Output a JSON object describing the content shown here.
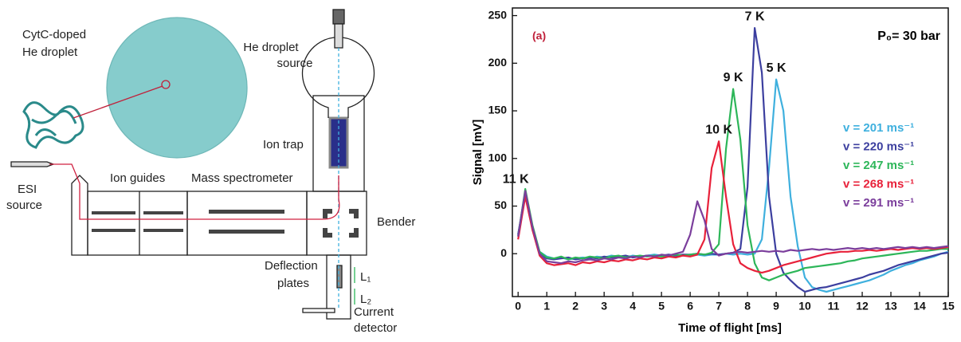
{
  "diagram": {
    "droplet_label": [
      "CytC-doped",
      "He droplet"
    ],
    "source_label": [
      "He droplet",
      "source"
    ],
    "ion_trap": "Ion trap",
    "esi_label": [
      "ESI",
      "source"
    ],
    "ion_guides": "Ion guides",
    "mass_spectrometer": "Mass spectrometer",
    "bender": "Bender",
    "deflection_label": [
      "Deflection",
      "plates"
    ],
    "detector_label": [
      "Current",
      "detector"
    ],
    "l1": "L₁",
    "l2": "L₂"
  },
  "chart_data": {
    "type": "line",
    "panel_label": "(a)",
    "condition": "P₀= 30 bar",
    "x_label": "Time of flight [ms]",
    "y_label": "Signal [mV]",
    "xlim": [
      -0.2,
      15
    ],
    "ylim": [
      -45,
      258
    ],
    "xticks": [
      0,
      1,
      2,
      3,
      4,
      5,
      6,
      7,
      8,
      9,
      10,
      11,
      12,
      13,
      14,
      15
    ],
    "yticks": [
      0,
      50,
      100,
      150,
      200,
      250
    ],
    "x": [
      0,
      0.25,
      0.5,
      0.75,
      1,
      1.25,
      1.5,
      1.75,
      2,
      2.25,
      2.5,
      2.75,
      3,
      3.25,
      3.5,
      3.75,
      4,
      4.25,
      4.5,
      4.75,
      5,
      5.25,
      5.5,
      5.75,
      6,
      6.25,
      6.5,
      6.75,
      7,
      7.25,
      7.5,
      7.75,
      8,
      8.25,
      8.5,
      8.75,
      9,
      9.25,
      9.5,
      9.75,
      10,
      10.25,
      10.5,
      10.75,
      11,
      11.25,
      11.5,
      11.75,
      12,
      12.25,
      12.5,
      12.75,
      13,
      13.25,
      13.5,
      13.75,
      14,
      14.25,
      14.5,
      14.75,
      15
    ],
    "series": [
      {
        "name": "v = 201 ms⁻¹",
        "annotation": "5 K",
        "color": "#3fb0de",
        "values": [
          20,
          62,
          25,
          2,
          -3,
          -5,
          -4,
          -6,
          -5,
          -4,
          -5,
          -3,
          -4,
          -2,
          -3,
          -4,
          -2,
          -3,
          -2,
          -1,
          -2,
          -3,
          -2,
          -1,
          -2,
          -1,
          -2,
          -1,
          -1,
          0,
          -1,
          0,
          -1,
          0,
          15,
          90,
          183,
          150,
          60,
          8,
          -25,
          -35,
          -38,
          -40,
          -38,
          -36,
          -34,
          -32,
          -30,
          -28,
          -25,
          -22,
          -18,
          -15,
          -12,
          -10,
          -7,
          -5,
          -3,
          0,
          2
        ]
      },
      {
        "name": "v = 220 ms⁻¹",
        "annotation": "7 K",
        "color": "#3c3f9f",
        "values": [
          20,
          65,
          28,
          0,
          -5,
          -6,
          -5,
          -4,
          -6,
          -5,
          -4,
          -5,
          -3,
          -4,
          -3,
          -2,
          -4,
          -3,
          -2,
          -3,
          -2,
          -1,
          -2,
          -1,
          -1,
          0,
          -1,
          0,
          -1,
          0,
          1,
          5,
          70,
          237,
          190,
          60,
          0,
          -20,
          -28,
          -35,
          -40,
          -38,
          -36,
          -35,
          -33,
          -31,
          -29,
          -27,
          -25,
          -22,
          -20,
          -18,
          -15,
          -12,
          -10,
          -8,
          -6,
          -4,
          -2,
          0,
          1
        ]
      },
      {
        "name": "v = 247 ms⁻¹",
        "annotation": "9 K",
        "color": "#2db659",
        "values": [
          18,
          68,
          30,
          2,
          -4,
          -5,
          -3,
          -6,
          -4,
          -5,
          -3,
          -4,
          -5,
          -3,
          -2,
          -4,
          -3,
          -2,
          -3,
          -2,
          -3,
          -2,
          -1,
          -2,
          -1,
          0,
          -1,
          1,
          10,
          110,
          173,
          120,
          30,
          -10,
          -25,
          -28,
          -25,
          -22,
          -20,
          -18,
          -15,
          -14,
          -13,
          -12,
          -11,
          -10,
          -8,
          -7,
          -5,
          -4,
          -3,
          -2,
          -1,
          0,
          1,
          2,
          3,
          3,
          4,
          5,
          5
        ]
      },
      {
        "name": "v = 268 ms⁻¹",
        "annotation": "10 K",
        "color": "#e8213a",
        "values": [
          15,
          60,
          25,
          -2,
          -10,
          -12,
          -11,
          -10,
          -12,
          -9,
          -10,
          -8,
          -9,
          -7,
          -8,
          -6,
          -7,
          -5,
          -6,
          -4,
          -5,
          -3,
          -4,
          -2,
          -3,
          -1,
          15,
          90,
          118,
          60,
          10,
          -10,
          -15,
          -18,
          -20,
          -18,
          -15,
          -12,
          -10,
          -8,
          -6,
          -4,
          -2,
          0,
          1,
          2,
          2,
          3,
          3,
          4,
          3,
          4,
          5,
          4,
          5,
          6,
          5,
          6,
          5,
          6,
          7
        ]
      },
      {
        "name": "v = 291 ms⁻¹",
        "annotation": "11 K",
        "color": "#7b3e9c",
        "values": [
          18,
          66,
          28,
          0,
          -8,
          -9,
          -10,
          -8,
          -9,
          -7,
          -6,
          -7,
          -5,
          -6,
          -4,
          -5,
          -3,
          -4,
          -2,
          -3,
          -1,
          -2,
          0,
          2,
          20,
          55,
          35,
          5,
          -2,
          0,
          1,
          2,
          1,
          2,
          3,
          2,
          3,
          2,
          4,
          3,
          4,
          5,
          4,
          5,
          4,
          5,
          6,
          5,
          6,
          5,
          6,
          5,
          6,
          7,
          6,
          7,
          6,
          7,
          6,
          7,
          8
        ]
      }
    ]
  }
}
